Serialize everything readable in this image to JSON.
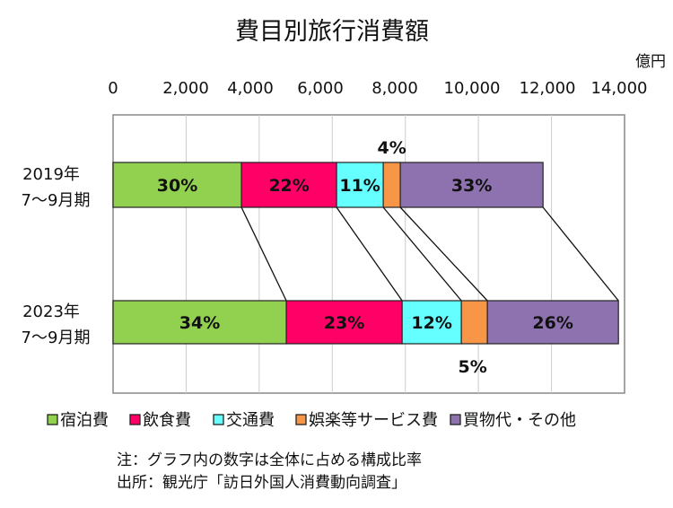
{
  "chart_data": {
    "type": "bar",
    "orientation": "horizontal-stacked",
    "title": "費目別旅行消費額",
    "unit_label": "億円",
    "xlim": [
      0,
      14000
    ],
    "xticks": [
      "0",
      "2,000",
      "4,000",
      "6,000",
      "8,000",
      "10,000",
      "12,000",
      "14,000"
    ],
    "xtick_values": [
      0,
      2000,
      4000,
      6000,
      8000,
      10000,
      12000,
      14000
    ],
    "grid": true,
    "legend_position": "bottom",
    "categories": [
      {
        "line1": "2019年",
        "line2": "7～9月期"
      },
      {
        "line1": "2023年",
        "line2": "7～9月期"
      }
    ],
    "series": [
      {
        "name": "宿泊費",
        "color": "#92d050",
        "values": [
          3514,
          4742
        ],
        "labels": [
          "30%",
          "34%"
        ]
      },
      {
        "name": "飲食費",
        "color": "#ff0066",
        "values": [
          2604,
          3170
        ],
        "labels": [
          "22%",
          "23%"
        ]
      },
      {
        "name": "交通費",
        "color": "#66ffff",
        "values": [
          1278,
          1621
        ],
        "labels": [
          "11%",
          "12%"
        ]
      },
      {
        "name": "娯楽等サービス費",
        "color": "#f79646",
        "values": [
          466,
          713
        ],
        "labels": [
          "4%",
          "5%"
        ]
      },
      {
        "name": "買物代・その他",
        "color": "#8e72b0",
        "values": [
          3907,
          3587
        ],
        "labels": [
          "33%",
          "26%"
        ]
      }
    ]
  },
  "notes": {
    "note": "注：グラフ内の数字は全体に占める構成比率",
    "source": "出所：観光庁「訪日外国人消費動向調査」"
  }
}
